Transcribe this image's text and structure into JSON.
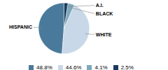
{
  "chart_data": {
    "type": "pie",
    "categories": [
      "HISPANIC",
      "WHITE",
      "BLACK",
      "A.I."
    ],
    "values": [
      48.8,
      44.6,
      4.1,
      2.5
    ],
    "value_labels": [
      "48.8%",
      "44.6%",
      "4.1%",
      "2.5%"
    ],
    "colors": [
      "#4a7a9b",
      "#c8d8e8",
      "#7aaabb",
      "#1a3a5c"
    ],
    "legend": "bottom"
  }
}
